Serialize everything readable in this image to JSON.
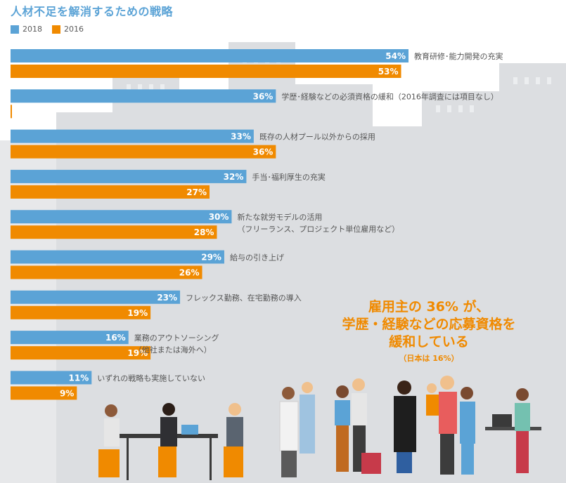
{
  "title": "人材不足を解消するための戦略",
  "colors": {
    "y2018": "#5ba3d6",
    "y2016": "#f08a00",
    "title": "#5ba3d6",
    "label_text": "#555555"
  },
  "chart_data": {
    "type": "bar",
    "orientation": "horizontal",
    "title": "人材不足を解消するための戦略",
    "legend_position": "top-left",
    "xlim": [
      0,
      60
    ],
    "grid": false,
    "categories": [
      [
        "教育研修･能力開発の充実"
      ],
      [
        "学歴･経験などの必須資格の緩和（2016年調査には項目なし）"
      ],
      [
        "既存の人材プール以外からの採用"
      ],
      [
        "手当･福利厚生の充実"
      ],
      [
        "新たな就労モデルの活用",
        "（フリーランス、プロジェクト単位雇用など）"
      ],
      [
        "給与の引き上げ"
      ],
      [
        "フレックス勤務、在宅勤務の導入"
      ],
      [
        "業務のアウトソーシング",
        "（他社または海外へ）"
      ],
      [
        "いずれの戦略も実施していない"
      ]
    ],
    "series": [
      {
        "name": "2018",
        "color": "#5ba3d6",
        "values": [
          54,
          36,
          33,
          32,
          30,
          29,
          23,
          16,
          11
        ],
        "labels": [
          "54%",
          "36%",
          "33%",
          "32%",
          "30%",
          "29%",
          "23%",
          "16%",
          "11%"
        ]
      },
      {
        "name": "2016",
        "color": "#f08a00",
        "values": [
          53,
          0,
          36,
          27,
          28,
          26,
          19,
          19,
          9
        ],
        "labels": [
          "53%",
          "",
          "36%",
          "27%",
          "28%",
          "26%",
          "19%",
          "19%",
          "9%"
        ]
      }
    ]
  },
  "callout": {
    "line1": "雇用主の 36% が、",
    "line2": "学歴・経験などの応募資格を",
    "line3": "緩和している",
    "line4": "（日本は 16%）"
  }
}
